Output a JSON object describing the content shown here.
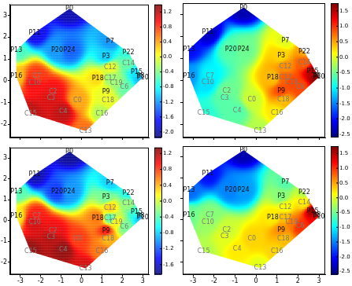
{
  "chart_data": [
    {
      "type": "scatter",
      "tick_labels": "y",
      "xlim": [
        -3.5,
        3.3
      ],
      "ylim": [
        -2.6,
        3.5
      ],
      "xticks": [
        -3,
        -2,
        -1,
        0,
        1,
        2,
        3
      ],
      "yticks": [
        -2,
        -1,
        0,
        1,
        2,
        3
      ],
      "labels": [
        "P0",
        "P11",
        "P13",
        "P16",
        "P20",
        "P24",
        "P7",
        "P3",
        "P22",
        "C14",
        "P15",
        "P8",
        "P10",
        "C12",
        "P18",
        "C17",
        "C19",
        "C6",
        "P9",
        "C18",
        "C16",
        "C13",
        "C15",
        "C7",
        "C10",
        "C3",
        "C2",
        "C4",
        "C0"
      ],
      "x": [
        -0.6,
        -2.3,
        -3.2,
        -3.2,
        -1.2,
        -0.6,
        1.4,
        1.2,
        2.3,
        2.3,
        2.7,
        2.9,
        3.0,
        1.4,
        0.8,
        1.4,
        1.7,
        2.1,
        1.2,
        1.3,
        1.0,
        0.2,
        -2.5,
        -2.2,
        -2.3,
        -1.5,
        -1.4,
        -0.9,
        -0.2
      ],
      "y": [
        3.3,
        2.2,
        1.4,
        0.2,
        1.4,
        1.4,
        1.8,
        1.1,
        1.3,
        0.8,
        0.4,
        0.2,
        0.15,
        0.6,
        0.1,
        0.1,
        -0.1,
        -0.3,
        -0.5,
        -0.9,
        -1.5,
        -2.3,
        -1.5,
        0.2,
        -0.1,
        -0.8,
        -0.5,
        -1.4,
        -0.9
      ],
      "values": [
        -2.0,
        -1.8,
        -0.6,
        0.3,
        -1.2,
        -1.4,
        -1.2,
        -1.0,
        -0.7,
        -0.5,
        -0.9,
        -1.0,
        -1.2,
        0.0,
        0.2,
        -0.3,
        -0.3,
        -0.5,
        0.0,
        0.0,
        -0.2,
        0.6,
        1.2,
        0.8,
        1.0,
        1.1,
        1.0,
        1.2,
        0.4
      ],
      "colorbar": {
        "range": [
          -2.15,
          1.4
        ],
        "ticks": [
          {
            "value": -2.0,
            "label": "-2.0"
          },
          {
            "value": -1.6,
            "label": "-1.6"
          },
          {
            "value": -1.2,
            "label": "-1.2"
          },
          {
            "value": -0.8,
            "label": "-0.8"
          },
          {
            "value": -0.4,
            "label": "-0.4"
          },
          {
            "value": 0.0,
            "label": "0.0"
          },
          {
            "value": 0.4,
            "label": "0.4"
          },
          {
            "value": 0.8,
            "label": "0.8"
          },
          {
            "value": 1.2,
            "label": "1.2"
          }
        ]
      }
    },
    {
      "type": "scatter",
      "tick_labels": false,
      "xlim": [
        -3.5,
        3.3
      ],
      "ylim": [
        -2.6,
        3.5
      ],
      "xticks": [
        -3,
        -2,
        -1,
        0,
        1,
        2,
        3
      ],
      "yticks": [
        -2,
        -1,
        0,
        1,
        2,
        3
      ],
      "labels": [
        "P0",
        "P11",
        "P13",
        "P16",
        "P20",
        "P24",
        "P7",
        "P3",
        "P22",
        "C14",
        "P15",
        "P8",
        "P10",
        "C12",
        "P18",
        "C17",
        "C19",
        "C6",
        "P9",
        "C18",
        "C16",
        "C13",
        "C15",
        "C7",
        "C10",
        "C3",
        "C2",
        "C4",
        "C0"
      ],
      "x": [
        -0.6,
        -2.3,
        -3.2,
        -3.2,
        -1.2,
        -0.6,
        1.4,
        1.2,
        2.3,
        2.3,
        2.7,
        2.9,
        3.0,
        1.4,
        0.8,
        1.4,
        1.7,
        2.1,
        1.2,
        1.3,
        1.0,
        0.2,
        -2.5,
        -2.2,
        -2.3,
        -1.5,
        -1.4,
        -0.9,
        -0.2
      ],
      "y": [
        3.3,
        2.2,
        1.4,
        0.2,
        1.4,
        1.4,
        1.8,
        1.1,
        1.3,
        0.8,
        0.4,
        0.2,
        0.15,
        0.6,
        0.1,
        0.1,
        -0.1,
        -0.3,
        -0.5,
        -0.9,
        -1.5,
        -2.3,
        -1.5,
        0.2,
        -0.1,
        -0.8,
        -0.5,
        -1.4,
        -0.9
      ],
      "values": [
        -2.4,
        -2.3,
        -2.0,
        -1.4,
        -0.6,
        -0.5,
        0.0,
        0.3,
        0.5,
        0.8,
        1.5,
        1.7,
        1.6,
        0.6,
        0.4,
        0.8,
        0.9,
        0.9,
        0.9,
        0.4,
        0.2,
        -0.2,
        -0.8,
        -1.0,
        -1.1,
        -0.6,
        -0.5,
        -0.6,
        -0.1
      ],
      "colorbar": {
        "range": [
          -2.6,
          1.75
        ],
        "ticks": [
          {
            "value": -2.5,
            "label": "-2.5"
          },
          {
            "value": -2.0,
            "label": "-2.0"
          },
          {
            "value": -1.5,
            "label": "-1.5"
          },
          {
            "value": -1.0,
            "label": "-1.0"
          },
          {
            "value": -0.5,
            "label": "-0.5"
          },
          {
            "value": 0.0,
            "label": "0.0"
          },
          {
            "value": 0.5,
            "label": "0.5"
          },
          {
            "value": 1.0,
            "label": "1.0"
          },
          {
            "value": 1.5,
            "label": "1.5"
          }
        ]
      }
    },
    {
      "type": "scatter",
      "tick_labels": true,
      "xlim": [
        -3.5,
        3.3
      ],
      "ylim": [
        -2.6,
        3.5
      ],
      "xticks": [
        -3,
        -2,
        -1,
        0,
        1,
        2,
        3
      ],
      "yticks": [
        -2,
        -1,
        0,
        1,
        2,
        3
      ],
      "labels": [
        "P0",
        "P11",
        "P13",
        "P16",
        "P20",
        "P24",
        "P7",
        "P3",
        "P22",
        "C14",
        "P15",
        "P8",
        "P10",
        "C12",
        "P18",
        "C17",
        "C19",
        "C6",
        "P9",
        "C18",
        "C16",
        "C13",
        "C15",
        "C7",
        "C10",
        "C3",
        "C2",
        "C4",
        "C0"
      ],
      "x": [
        -0.6,
        -2.3,
        -3.2,
        -3.2,
        -1.2,
        -0.6,
        1.4,
        1.2,
        2.3,
        2.3,
        2.7,
        2.9,
        3.0,
        1.4,
        0.8,
        1.4,
        1.7,
        2.1,
        1.2,
        1.3,
        1.0,
        0.2,
        -2.5,
        -2.2,
        -2.3,
        -1.5,
        -1.4,
        -0.9,
        -0.2
      ],
      "y": [
        3.3,
        2.2,
        1.4,
        0.2,
        1.4,
        1.4,
        1.8,
        1.1,
        1.3,
        0.8,
        0.4,
        0.2,
        0.15,
        0.6,
        0.1,
        0.1,
        -0.1,
        -0.3,
        -0.5,
        -0.9,
        -1.5,
        -2.3,
        -1.5,
        0.2,
        -0.1,
        -0.8,
        -0.5,
        -1.4,
        -0.9
      ],
      "values": [
        -1.8,
        -1.7,
        -0.4,
        0.2,
        -1.3,
        -1.0,
        -0.8,
        -0.3,
        -0.6,
        -0.2,
        -0.5,
        -0.8,
        -1.0,
        0.3,
        0.6,
        -0.4,
        0.2,
        -0.3,
        0.9,
        0.4,
        0.6,
        1.1,
        1.3,
        0.9,
        1.1,
        1.2,
        1.0,
        1.3,
        0.8
      ],
      "colorbar": {
        "range": [
          -1.85,
          1.35
        ],
        "ticks": [
          {
            "value": -1.6,
            "label": "-1.6"
          },
          {
            "value": -1.2,
            "label": "-1.2"
          },
          {
            "value": -0.8,
            "label": "-0.8"
          },
          {
            "value": -0.4,
            "label": "-0.4"
          },
          {
            "value": 0.0,
            "label": "0.0"
          },
          {
            "value": 0.4,
            "label": "0.4"
          },
          {
            "value": 0.8,
            "label": "0.8"
          },
          {
            "value": 1.2,
            "label": "1.2"
          }
        ]
      }
    },
    {
      "type": "scatter",
      "tick_labels": "x",
      "xlim": [
        -3.5,
        3.3
      ],
      "ylim": [
        -2.6,
        3.5
      ],
      "xticks": [
        -3,
        -2,
        -1,
        0,
        1,
        2,
        3
      ],
      "yticks": [
        -2,
        -1,
        0,
        1,
        2,
        3
      ],
      "labels": [
        "P0",
        "P11",
        "P13",
        "P16",
        "P20",
        "P24",
        "P7",
        "P3",
        "P22",
        "C14",
        "P15",
        "P8",
        "P10",
        "C12",
        "P18",
        "C17",
        "C19",
        "C6",
        "P9",
        "C18",
        "C16",
        "C13",
        "C15",
        "C7",
        "C10",
        "C3",
        "C2",
        "C4",
        "C0"
      ],
      "x": [
        -0.6,
        -2.3,
        -3.2,
        -3.2,
        -1.2,
        -0.6,
        1.4,
        1.2,
        2.3,
        2.3,
        2.7,
        2.9,
        3.0,
        1.4,
        0.8,
        1.4,
        1.7,
        2.1,
        1.2,
        1.3,
        1.0,
        0.2,
        -2.5,
        -2.2,
        -2.3,
        -1.5,
        -1.4,
        -0.9,
        -0.2
      ],
      "y": [
        3.3,
        2.2,
        1.4,
        0.2,
        1.4,
        1.4,
        1.8,
        1.1,
        1.3,
        0.8,
        0.4,
        0.2,
        0.15,
        0.6,
        0.1,
        0.1,
        -0.1,
        -0.3,
        -0.5,
        -0.9,
        -1.5,
        -2.3,
        -1.5,
        0.2,
        -0.1,
        -0.8,
        -0.5,
        -1.4,
        -0.9
      ],
      "values": [
        -2.4,
        -2.0,
        -1.6,
        -0.5,
        -1.5,
        -1.4,
        -0.6,
        -0.4,
        -0.2,
        0.2,
        1.6,
        1.4,
        0.9,
        0.1,
        0.2,
        0.4,
        0.7,
        1.0,
        0.6,
        0.4,
        0.3,
        0.0,
        -0.2,
        -0.4,
        -0.3,
        0.0,
        -0.1,
        0.2,
        0.3
      ],
      "colorbar": {
        "range": [
          -2.6,
          1.75
        ],
        "ticks": [
          {
            "value": -2.5,
            "label": "-2.5"
          },
          {
            "value": -2.0,
            "label": "-2.0"
          },
          {
            "value": -1.5,
            "label": "-1.5"
          },
          {
            "value": -1.0,
            "label": "-1.0"
          },
          {
            "value": -0.5,
            "label": "-0.5"
          },
          {
            "value": 0.0,
            "label": "0.0"
          },
          {
            "value": 0.5,
            "label": "0.5"
          },
          {
            "value": 1.0,
            "label": "1.0"
          },
          {
            "value": 1.5,
            "label": "1.5"
          }
        ]
      }
    }
  ]
}
